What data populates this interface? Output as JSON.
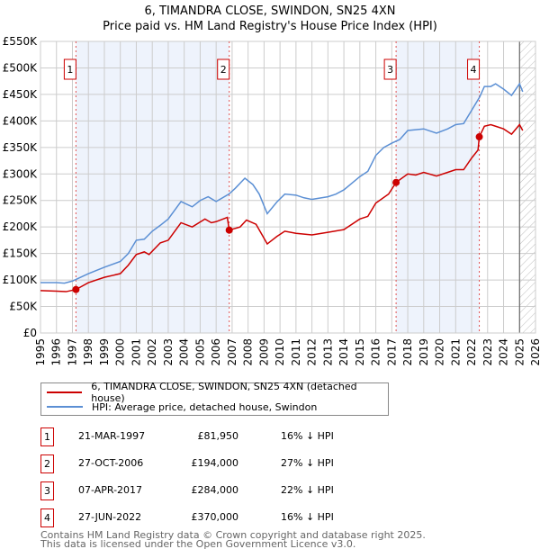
{
  "title": "6, TIMANDRA CLOSE, SWINDON, SN25 4XN",
  "subtitle": "Price paid vs. HM Land Registry's House Price Index (HPI)",
  "chart_data": {
    "type": "line",
    "ylim": [
      0,
      550000
    ],
    "xlim": [
      1995,
      2026
    ],
    "yticks": [
      {
        "v": 0,
        "label": "£0"
      },
      {
        "v": 50000,
        "label": "£50K"
      },
      {
        "v": 100000,
        "label": "£100K"
      },
      {
        "v": 150000,
        "label": "£150K"
      },
      {
        "v": 200000,
        "label": "£200K"
      },
      {
        "v": 250000,
        "label": "£250K"
      },
      {
        "v": 300000,
        "label": "£300K"
      },
      {
        "v": 350000,
        "label": "£350K"
      },
      {
        "v": 400000,
        "label": "£400K"
      },
      {
        "v": 450000,
        "label": "£450K"
      },
      {
        "v": 500000,
        "label": "£500K"
      },
      {
        "v": 550000,
        "label": "£550K"
      }
    ],
    "xticks": [
      "1995",
      "1996",
      "1997",
      "1998",
      "1999",
      "2000",
      "2001",
      "2002",
      "2003",
      "2004",
      "2005",
      "2006",
      "2007",
      "2008",
      "2009",
      "2010",
      "2011",
      "2012",
      "2013",
      "2014",
      "2015",
      "2016",
      "2017",
      "2018",
      "2019",
      "2020",
      "2021",
      "2022",
      "2023",
      "2024",
      "2025",
      "2026"
    ],
    "series": [
      {
        "name": "6, TIMANDRA CLOSE, SWINDON, SN25 4XN (detached house)",
        "color": "#cc0000",
        "points": [
          [
            1995,
            80
          ],
          [
            1996,
            79
          ],
          [
            1996.6,
            78
          ],
          [
            1997.22,
            81.95
          ],
          [
            1998,
            95
          ],
          [
            1999,
            105
          ],
          [
            2000,
            112
          ],
          [
            2000.5,
            128
          ],
          [
            2001,
            148
          ],
          [
            2001.5,
            153
          ],
          [
            2001.8,
            148
          ],
          [
            2002.5,
            170
          ],
          [
            2003,
            175
          ],
          [
            2003.8,
            208
          ],
          [
            2004.5,
            200
          ],
          [
            2005.3,
            215
          ],
          [
            2005.7,
            208
          ],
          [
            2006,
            210
          ],
          [
            2006.7,
            218
          ],
          [
            2006.82,
            194
          ],
          [
            2007.5,
            200
          ],
          [
            2007.9,
            213
          ],
          [
            2008.5,
            205
          ],
          [
            2009.2,
            168
          ],
          [
            2009.8,
            182
          ],
          [
            2010.3,
            192
          ],
          [
            2011,
            188
          ],
          [
            2012,
            185
          ],
          [
            2013,
            190
          ],
          [
            2014,
            195
          ],
          [
            2015,
            215
          ],
          [
            2015.5,
            220
          ],
          [
            2016,
            245
          ],
          [
            2016.8,
            262
          ],
          [
            2017.27,
            284
          ],
          [
            2018,
            300
          ],
          [
            2018.5,
            298
          ],
          [
            2019,
            303
          ],
          [
            2019.8,
            296
          ],
          [
            2020.5,
            303
          ],
          [
            2021,
            308
          ],
          [
            2021.5,
            308
          ],
          [
            2022,
            330
          ],
          [
            2022.4,
            345
          ],
          [
            2022.48,
            370
          ],
          [
            2022.8,
            390
          ],
          [
            2023.2,
            393
          ],
          [
            2023.5,
            390
          ],
          [
            2024,
            385
          ],
          [
            2024.5,
            375
          ],
          [
            2025,
            393
          ],
          [
            2025.2,
            382
          ]
        ]
      },
      {
        "name": "HPI: Average price, detached house, Swindon",
        "color": "#5b8fd4",
        "points": [
          [
            1995,
            95
          ],
          [
            1996,
            95
          ],
          [
            1996.5,
            94
          ],
          [
            1997,
            98
          ],
          [
            1998,
            112
          ],
          [
            1999,
            124
          ],
          [
            2000,
            135
          ],
          [
            2000.5,
            150
          ],
          [
            2001,
            175
          ],
          [
            2001.5,
            177
          ],
          [
            2002,
            192
          ],
          [
            2002.5,
            203
          ],
          [
            2003,
            215
          ],
          [
            2003.8,
            248
          ],
          [
            2004.5,
            238
          ],
          [
            2005,
            250
          ],
          [
            2005.5,
            257
          ],
          [
            2006,
            248
          ],
          [
            2006.8,
            262
          ],
          [
            2007.2,
            273
          ],
          [
            2007.8,
            292
          ],
          [
            2008.3,
            280
          ],
          [
            2008.7,
            262
          ],
          [
            2009.2,
            225
          ],
          [
            2009.8,
            247
          ],
          [
            2010.3,
            262
          ],
          [
            2011,
            260
          ],
          [
            2011.5,
            255
          ],
          [
            2012,
            252
          ],
          [
            2013,
            257
          ],
          [
            2013.5,
            262
          ],
          [
            2014,
            270
          ],
          [
            2015,
            295
          ],
          [
            2015.5,
            305
          ],
          [
            2016,
            335
          ],
          [
            2016.5,
            350
          ],
          [
            2017,
            358
          ],
          [
            2017.5,
            365
          ],
          [
            2018,
            382
          ],
          [
            2019,
            385
          ],
          [
            2019.8,
            377
          ],
          [
            2020.5,
            385
          ],
          [
            2021,
            393
          ],
          [
            2021.5,
            395
          ],
          [
            2022,
            420
          ],
          [
            2022.5,
            445
          ],
          [
            2022.8,
            465
          ],
          [
            2023.2,
            465
          ],
          [
            2023.5,
            470
          ],
          [
            2024,
            460
          ],
          [
            2024.5,
            448
          ],
          [
            2025,
            470
          ],
          [
            2025.2,
            455
          ]
        ]
      }
    ],
    "sales": [
      {
        "n": "1",
        "x": 1997.22,
        "date": "21-MAR-1997",
        "price": "£81,950",
        "value": 81950,
        "hpi": "16% ↓ HPI"
      },
      {
        "n": "2",
        "x": 2006.82,
        "date": "27-OCT-2006",
        "price": "£194,000",
        "value": 194000,
        "hpi": "27% ↓ HPI"
      },
      {
        "n": "3",
        "x": 2017.27,
        "date": "07-APR-2017",
        "price": "£284,000",
        "value": 284000,
        "hpi": "22% ↓ HPI"
      },
      {
        "n": "4",
        "x": 2022.48,
        "date": "27-JUN-2022",
        "price": "£370,000",
        "value": 370000,
        "hpi": "16% ↓ HPI"
      }
    ],
    "shaded": [
      [
        1997.22,
        2006.82
      ],
      [
        2017.27,
        2022.48
      ]
    ],
    "forecast_from": 2025.0
  },
  "footer": [
    "Contains HM Land Registry data © Crown copyright and database right 2025.",
    "This data is licensed under the Open Government Licence v3.0."
  ]
}
